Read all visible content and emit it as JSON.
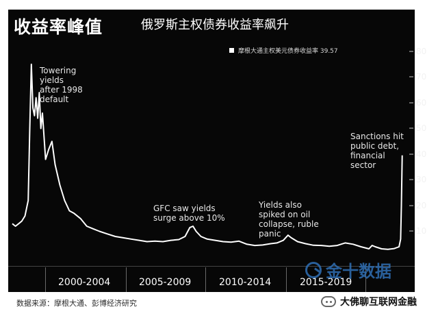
{
  "header": {
    "title_left": "收益率峰值",
    "title_center": "俄罗斯主权债券收益率飙升"
  },
  "legend": {
    "label": "摩根大通主权美元债券收益率 39.57"
  },
  "annotations": [
    "Towering\nyields\nafter 1998\ndefault",
    "GFC saw yields\nsurge above 10%",
    "Yields also\nspiked on oil\ncollapse, ruble\npanic",
    "Sanctions hit\npublic debt,\nfinancial\nsector"
  ],
  "x_bands": [
    "2000-2004",
    "2005-2009",
    "2010-2014",
    "2015-2019"
  ],
  "source": "数据来源：摩根大通、彭博经济研究",
  "watermark": "金十数据",
  "footer_brand": "大佛聊互联网金融",
  "colors": {
    "background": "#070707",
    "series": "#ffffff",
    "accent_watermark": "#2f6fb4"
  },
  "chart_data": {
    "type": "line",
    "title": "俄罗斯主权债券收益率飙升",
    "yticks": [
      10,
      20,
      30,
      40,
      50,
      60,
      70,
      80
    ],
    "ylim": [
      0,
      85
    ],
    "xlim": [
      1997.5,
      2022.2
    ],
    "series": [
      {
        "name": "摩根大通主权美元债券收益率 39.57",
        "points": [
          [
            1997.5,
            13
          ],
          [
            1997.7,
            12
          ],
          [
            1997.9,
            13
          ],
          [
            1998.1,
            14
          ],
          [
            1998.3,
            16
          ],
          [
            1998.5,
            22
          ],
          [
            1998.6,
            50
          ],
          [
            1998.7,
            75
          ],
          [
            1998.8,
            58
          ],
          [
            1998.9,
            55
          ],
          [
            1999.0,
            62
          ],
          [
            1999.1,
            54
          ],
          [
            1999.2,
            64
          ],
          [
            1999.3,
            50
          ],
          [
            1999.4,
            56
          ],
          [
            1999.6,
            38
          ],
          [
            1999.8,
            42
          ],
          [
            2000.0,
            45
          ],
          [
            2000.2,
            36
          ],
          [
            2000.5,
            28
          ],
          [
            2000.8,
            22
          ],
          [
            2001.1,
            18
          ],
          [
            2001.4,
            17
          ],
          [
            2001.8,
            15
          ],
          [
            2002.2,
            12
          ],
          [
            2002.6,
            11
          ],
          [
            2003.0,
            10
          ],
          [
            2003.5,
            9
          ],
          [
            2004.0,
            8
          ],
          [
            2004.5,
            7.5
          ],
          [
            2005.0,
            7
          ],
          [
            2005.5,
            6.5
          ],
          [
            2006.0,
            6
          ],
          [
            2006.5,
            6.2
          ],
          [
            2007.0,
            6
          ],
          [
            2007.5,
            6.5
          ],
          [
            2008.0,
            6.8
          ],
          [
            2008.4,
            8
          ],
          [
            2008.7,
            11.5
          ],
          [
            2008.9,
            12
          ],
          [
            2009.1,
            10
          ],
          [
            2009.4,
            8
          ],
          [
            2009.8,
            7
          ],
          [
            2010.3,
            6.5
          ],
          [
            2010.8,
            6
          ],
          [
            2011.3,
            5.8
          ],
          [
            2011.8,
            6.2
          ],
          [
            2012.3,
            5
          ],
          [
            2012.8,
            4.5
          ],
          [
            2013.3,
            4.7
          ],
          [
            2013.8,
            5.2
          ],
          [
            2014.2,
            5.5
          ],
          [
            2014.6,
            6.5
          ],
          [
            2014.9,
            8.5
          ],
          [
            2015.1,
            7.5
          ],
          [
            2015.5,
            6
          ],
          [
            2016.0,
            5.2
          ],
          [
            2016.5,
            4.6
          ],
          [
            2017.0,
            4.5
          ],
          [
            2017.5,
            4.2
          ],
          [
            2018.0,
            4.5
          ],
          [
            2018.5,
            5.5
          ],
          [
            2019.0,
            5
          ],
          [
            2019.5,
            4
          ],
          [
            2020.0,
            3.2
          ],
          [
            2020.2,
            4.5
          ],
          [
            2020.4,
            4
          ],
          [
            2020.8,
            3.2
          ],
          [
            2021.2,
            3
          ],
          [
            2021.6,
            3.3
          ],
          [
            2021.9,
            4
          ],
          [
            2022.0,
            7
          ],
          [
            2022.05,
            20
          ],
          [
            2022.1,
            39.57
          ]
        ]
      }
    ]
  }
}
